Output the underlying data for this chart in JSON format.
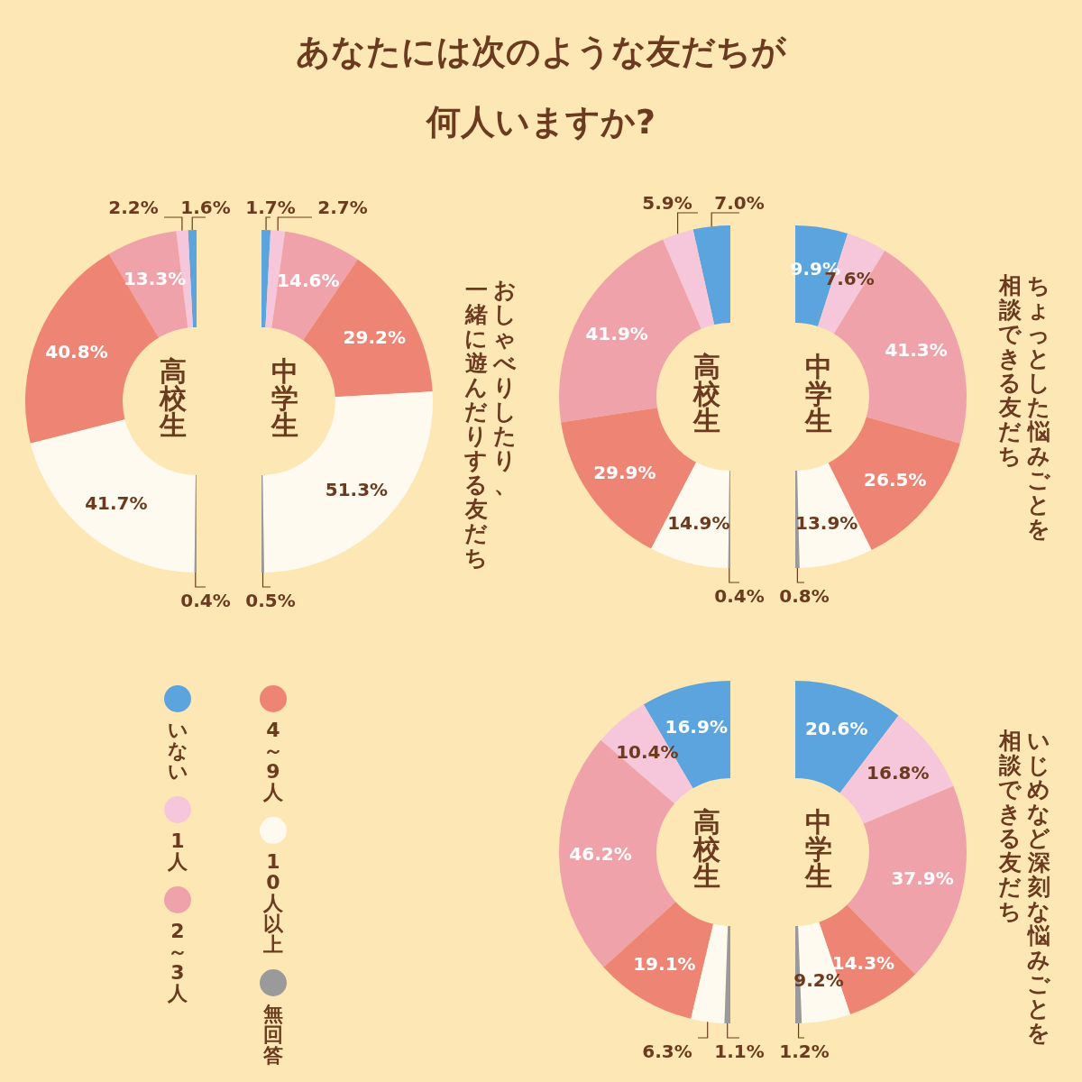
{
  "chart_data": [
    {
      "type": "donut",
      "title": "あなたには次のような友だちが",
      "subtitle": "何人いますか?",
      "xlabel": "高校生",
      "legend": "bottom right",
      "categories": [
        "いない",
        "1人",
        "2～3人",
        "4～9人",
        "10人以上",
        "無回答"
      ],
      "colors": [
        "#5ba4de",
        "#f6c6da",
        "#f0a2aa",
        "#ee8474",
        "#fffaf0",
        "#9a9a9a"
      ],
      "values": [
        1.6,
        2.2,
        13.3,
        40.8,
        41.7,
        0.4
      ],
      "value_labels": [
        "1.6%",
        "2.2%",
        "13.3%",
        "40.8%",
        "41.7%",
        "0.4%"
      ]
    },
    {
      "type": "donut",
      "xlabel": "中学生",
      "subtitle": "おしゃべりしたり、",
      "annotations": [
        "一緒に遊んだりする友だち"
      ],
      "colors": [
        "#5ba4de",
        "#f6c6da",
        "#f0a2aa",
        "#ee8474",
        "#fffaf0",
        "#9a9a9a"
      ],
      "values": [
        1.7,
        2.7,
        14.6,
        29.2,
        51.3,
        0.5
      ],
      "value_labels": [
        "1.7%",
        "2.7%",
        "14.6%",
        "29.2%",
        "51.3%",
        "0.5%"
      ]
    },
    {
      "type": "donut",
      "xlabel": "高校生",
      "colors": [
        "#5ba4de",
        "#f6c6da",
        "#f0a2aa",
        "#ee8474",
        "#fffaf0",
        "#9a9a9a"
      ],
      "values": [
        7.0,
        5.9,
        41.9,
        29.9,
        14.9,
        0.4
      ],
      "value_labels": [
        "7.0%",
        "5.9%",
        "41.9%",
        "29.9%",
        "14.9%",
        "0.4%"
      ]
    },
    {
      "type": "donut",
      "xlabel": "中学生",
      "subtitle": "ちょっとした悩みごとを",
      "annotations": [
        "相談できる友だち"
      ],
      "colors": [
        "#5ba4de",
        "#f6c6da",
        "#f0a2aa",
        "#ee8474",
        "#fffaf0",
        "#9a9a9a"
      ],
      "values": [
        9.9,
        7.6,
        41.3,
        26.5,
        13.9,
        0.8
      ],
      "value_labels": [
        "9.9%",
        "7.6%",
        "41.3%",
        "26.5%",
        "13.9%",
        "0.8%"
      ]
    },
    {
      "type": "donut",
      "xlabel": "高校生",
      "colors": [
        "#5ba4de",
        "#f6c6da",
        "#f0a2aa",
        "#ee8474",
        "#fffaf0",
        "#9a9a9a"
      ],
      "values": [
        16.9,
        10.4,
        46.2,
        19.1,
        6.3,
        1.1
      ],
      "value_labels": [
        "16.9%",
        "10.4%",
        "46.2%",
        "19.1%",
        "6.3%",
        "1.1%"
      ]
    },
    {
      "type": "donut",
      "xlabel": "中学生",
      "subtitle": "いじめなど深刻な悩みごとを",
      "annotations": [
        "相談できる友だち"
      ],
      "colors": [
        "#5ba4de",
        "#f6c6da",
        "#f0a2aa",
        "#ee8474",
        "#fffaf0",
        "#9a9a9a"
      ],
      "values": [
        20.6,
        16.8,
        37.9,
        14.3,
        9.2,
        1.2
      ],
      "value_labels": [
        "20.6%",
        "16.8%",
        "37.9%",
        "14.3%",
        "9.2%",
        "1.2%"
      ]
    }
  ]
}
